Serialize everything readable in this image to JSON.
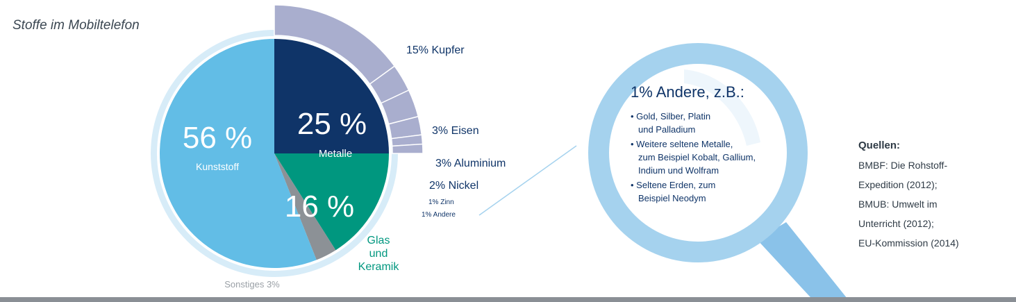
{
  "chart_data": {
    "type": "pie",
    "title": "Stoffe im Mobiltelefon",
    "slices": [
      {
        "label": "Kunststoff",
        "value": 56,
        "value_text": "56 %",
        "color": "#62bde6"
      },
      {
        "label": "Metalle",
        "value": 25,
        "value_text": "25 %",
        "color": "#0f3468"
      },
      {
        "label": "Glas und Keramik",
        "value": 16,
        "value_text": "16 %",
        "color": "#00977f",
        "label_lines": [
          "Glas",
          "und",
          "Keramik"
        ]
      },
      {
        "label": "Sonstiges",
        "value": 3,
        "value_text": "Sonstiges 3%",
        "color": "#8c9196"
      }
    ],
    "metal_breakdown": [
      {
        "label": "15% Kupfer",
        "value": 15
      },
      {
        "label": "3% Eisen",
        "value": 3
      },
      {
        "label": "3% Aluminium",
        "value": 3
      },
      {
        "label": "2% Nickel",
        "value": 2
      },
      {
        "label": "1% Zinn",
        "value": 1
      },
      {
        "label": "1% Andere",
        "value": 1
      }
    ],
    "breakdown_colors": {
      "ring": "#a9aece",
      "outline": "#ffffff"
    },
    "magnifier": {
      "heading": "1% Andere, z.B.:",
      "items": [
        [
          "• Gold, Silber, Platin",
          "und Palladium"
        ],
        [
          "• Weitere seltene Metalle,",
          "zum Beispiel Kobalt, Gallium,",
          "Indium und Wolfram"
        ],
        [
          "• Seltene Erden, zum",
          "Beispiel Neodym"
        ]
      ],
      "ring_color": "#a5d2ee",
      "text_color": "#0f3468"
    }
  },
  "sources": {
    "heading": "Quellen:",
    "lines": [
      "BMBF: Die Rohstoff-",
      "Expedition (2012);",
      "BMUB: Umwelt im",
      "Unterricht (2012);",
      "EU-Kommission (2014)"
    ]
  }
}
